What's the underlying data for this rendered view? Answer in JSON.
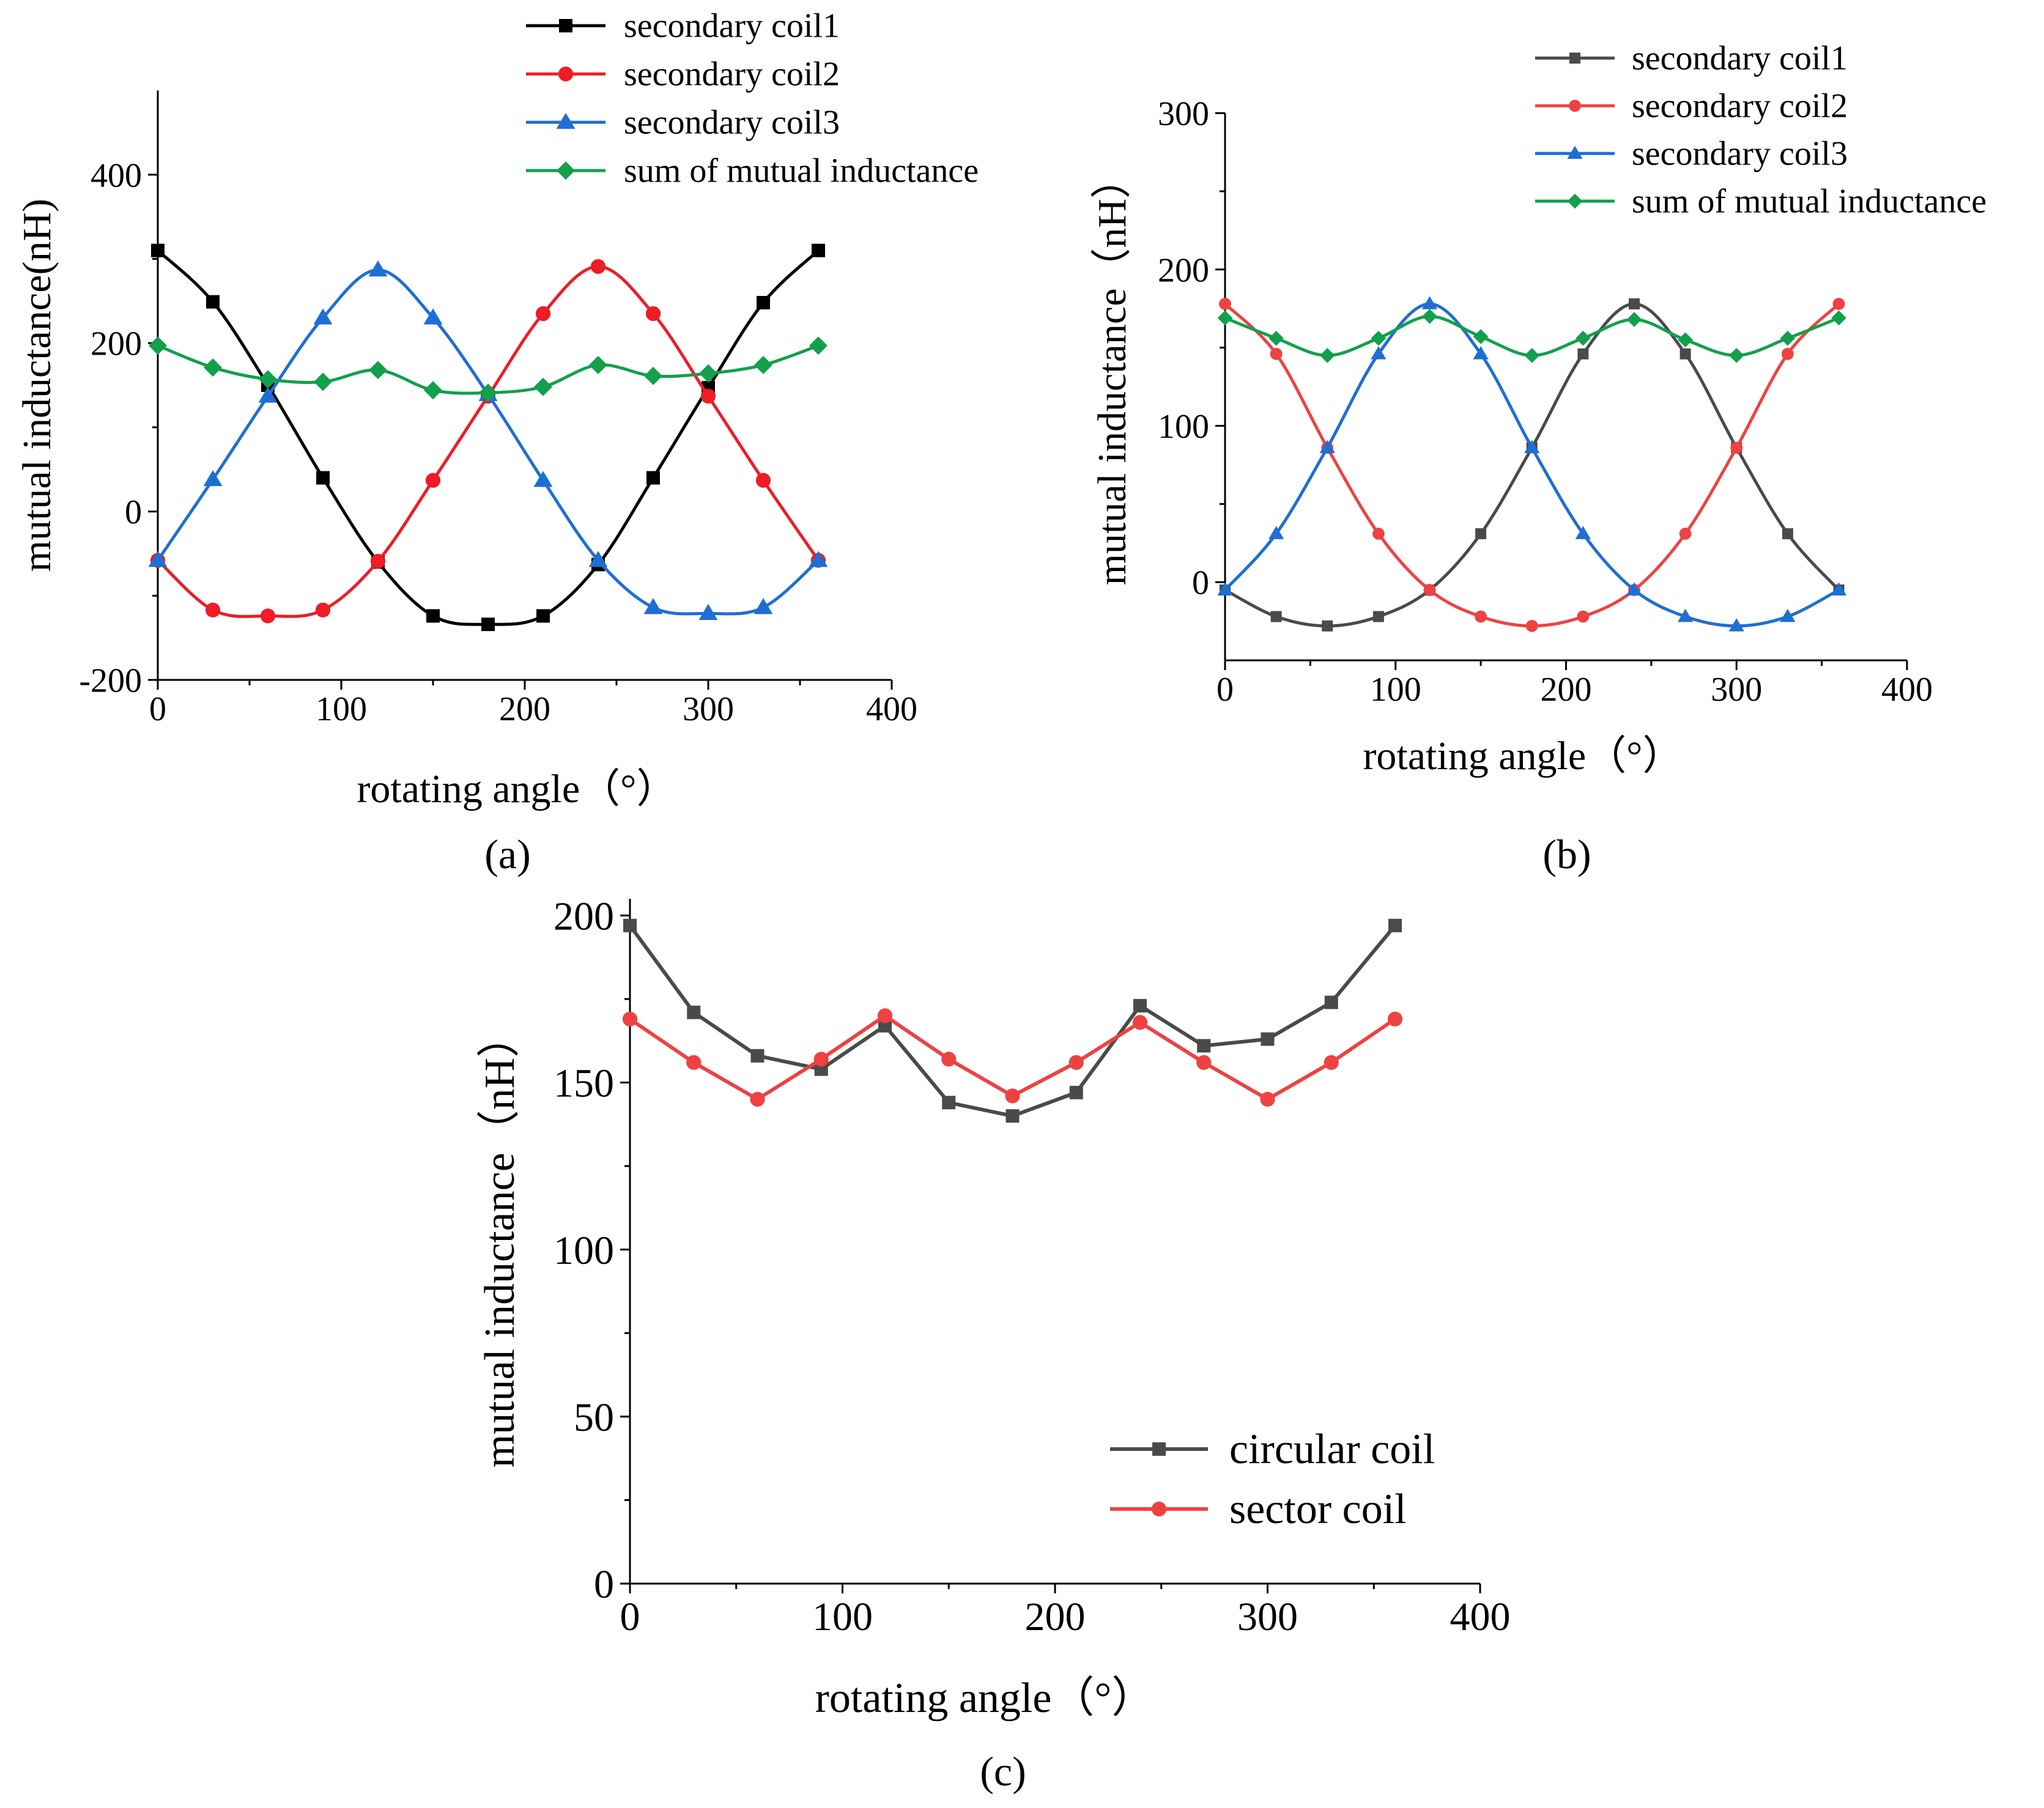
{
  "chart_data": [
    {
      "id": "a",
      "type": "line",
      "panel_label": "(a)",
      "xlabel": "rotating angle（°）",
      "ylabel": "mutual inductance(nH)",
      "xlim": [
        0,
        400
      ],
      "ylim": [
        -200,
        500
      ],
      "xticks": [
        0,
        100,
        200,
        300,
        400
      ],
      "yticks": [
        -200,
        0,
        200,
        400
      ],
      "x": [
        0,
        30,
        60,
        90,
        120,
        150,
        180,
        210,
        240,
        270,
        300,
        330,
        360
      ],
      "legend_position": "top-right",
      "series": [
        {
          "name": "secondary coil1",
          "color": "#000000",
          "marker": "square",
          "values": [
            310,
            249,
            150,
            40,
            -60,
            -124,
            -134,
            -124,
            -63,
            40,
            147,
            248,
            310
          ]
        },
        {
          "name": "secondary coil2",
          "color": "#ee1c24",
          "marker": "circle",
          "values": [
            -58,
            -117,
            -124,
            -117,
            -59,
            37,
            137,
            235,
            291,
            235,
            137,
            37,
            -58
          ]
        },
        {
          "name": "secondary coil3",
          "color": "#1e6ed4",
          "marker": "triangle",
          "values": [
            -58,
            38,
            137,
            230,
            287,
            230,
            139,
            37,
            -58,
            -114,
            -121,
            -114,
            -58
          ]
        },
        {
          "name": "sum of mutual inductance",
          "color": "#12a04a",
          "marker": "diamond",
          "values": [
            197,
            171,
            157,
            154,
            168,
            144,
            141,
            148,
            174,
            161,
            164,
            174,
            197
          ]
        }
      ]
    },
    {
      "id": "b",
      "type": "line",
      "panel_label": "(b)",
      "xlabel": "rotating angle（°）",
      "ylabel": "mutual inductance（nH）",
      "xlim": [
        0,
        400
      ],
      "ylim": [
        -50,
        300
      ],
      "xticks": [
        0,
        100,
        200,
        300,
        400
      ],
      "yticks": [
        0,
        100,
        200,
        300
      ],
      "x": [
        0,
        30,
        60,
        90,
        120,
        150,
        180,
        210,
        240,
        270,
        300,
        330,
        360
      ],
      "legend_position": "top-right",
      "series": [
        {
          "name": "secondary coil1",
          "color": "#4a4a4a",
          "marker": "square",
          "values": [
            -5,
            -22,
            -28,
            -22,
            -5,
            31,
            86,
            146,
            178,
            146,
            86,
            31,
            -5
          ]
        },
        {
          "name": "secondary coil2",
          "color": "#ee4242",
          "marker": "circle",
          "values": [
            178,
            146,
            86,
            31,
            -5,
            -22,
            -28,
            -22,
            -5,
            31,
            86,
            146,
            178
          ]
        },
        {
          "name": "secondary coil3",
          "color": "#1e6ed4",
          "marker": "triangle",
          "values": [
            -5,
            31,
            86,
            146,
            178,
            146,
            86,
            31,
            -5,
            -22,
            -28,
            -22,
            -5
          ]
        },
        {
          "name": "sum of mutual inductance",
          "color": "#12a04a",
          "marker": "diamond",
          "values": [
            169,
            156,
            145,
            156,
            170,
            157,
            145,
            156,
            168,
            155,
            145,
            156,
            169
          ]
        }
      ]
    },
    {
      "id": "c",
      "type": "line",
      "panel_label": "(c)",
      "xlabel": "rotating angle（°）",
      "ylabel": "mutual inductance（nH）",
      "xlim": [
        0,
        400
      ],
      "ylim": [
        0,
        205
      ],
      "xticks": [
        0,
        100,
        200,
        300,
        400
      ],
      "yticks": [
        0,
        50,
        100,
        150,
        200
      ],
      "x": [
        0,
        30,
        60,
        90,
        120,
        150,
        180,
        210,
        240,
        270,
        300,
        330,
        360
      ],
      "legend_position": "bottom-center",
      "series": [
        {
          "name": "circular coil",
          "color": "#4a4a4a",
          "marker": "square",
          "values": [
            197,
            171,
            158,
            154,
            167,
            144,
            140,
            147,
            173,
            161,
            163,
            174,
            197
          ]
        },
        {
          "name": "sector coil",
          "color": "#ee4242",
          "marker": "circle",
          "values": [
            169,
            156,
            145,
            157,
            170,
            157,
            146,
            156,
            168,
            156,
            145,
            156,
            169
          ]
        }
      ]
    }
  ]
}
